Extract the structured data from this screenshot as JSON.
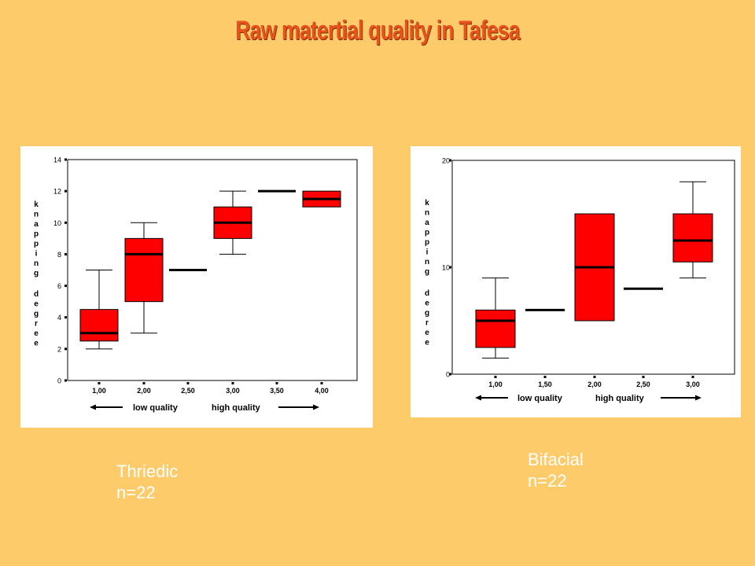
{
  "title": "Raw matertial quality in Tafesa",
  "chart_data": [
    {
      "type": "box",
      "ylabel": "knapping degree",
      "ylim": [
        0,
        14
      ],
      "yticks": [
        "0",
        "2",
        "4",
        "6",
        "8",
        "10",
        "12",
        "14"
      ],
      "categories": [
        "1,00",
        "2,00",
        "2,50",
        "3,00",
        "3,50",
        "4,00"
      ],
      "boxes": [
        {
          "x": "1,00",
          "min": 2,
          "q1": 2.5,
          "median": 3,
          "q3": 4.5,
          "max": 7
        },
        {
          "x": "2,00",
          "min": 3,
          "q1": 5,
          "median": 8,
          "q3": 9,
          "max": 10
        },
        {
          "x": "2,50",
          "min": 7,
          "q1": 7,
          "median": 7,
          "q3": 7,
          "max": 7
        },
        {
          "x": "3,00",
          "min": 8,
          "q1": 9,
          "median": 10,
          "q3": 11,
          "max": 12
        },
        {
          "x": "3,50",
          "min": 12,
          "q1": 12,
          "median": 12,
          "q3": 12,
          "max": 12
        },
        {
          "x": "4,00",
          "min": 11,
          "q1": 11,
          "median": 11.5,
          "q3": 12,
          "max": 12
        }
      ],
      "axis_note_left": "low quality",
      "axis_note_right": "high quality",
      "caption": [
        "Thriedic",
        "n=22"
      ],
      "box_color": "#FF0000"
    },
    {
      "type": "box",
      "ylabel": "knapping degree",
      "ylim": [
        0,
        20
      ],
      "yticks": [
        "0",
        "10",
        "20"
      ],
      "categories": [
        "1,00",
        "1,50",
        "2,00",
        "2,50",
        "3,00"
      ],
      "boxes": [
        {
          "x": "1,00",
          "min": 1.5,
          "q1": 2.5,
          "median": 5,
          "q3": 6,
          "max": 9
        },
        {
          "x": "1,50",
          "min": 6,
          "q1": 6,
          "median": 6,
          "q3": 6,
          "max": 6
        },
        {
          "x": "2,00",
          "min": 5,
          "q1": 5,
          "median": 10,
          "q3": 15,
          "max": 15
        },
        {
          "x": "2,50",
          "min": 8,
          "q1": 8,
          "median": 8,
          "q3": 8,
          "max": 8
        },
        {
          "x": "3,00",
          "min": 9,
          "q1": 10.5,
          "median": 12.5,
          "q3": 15,
          "max": 18
        }
      ],
      "axis_note_left": "low quality",
      "axis_note_right": "high quality",
      "caption": [
        "Bifacial",
        "n=22"
      ],
      "box_color": "#FF0000"
    }
  ]
}
